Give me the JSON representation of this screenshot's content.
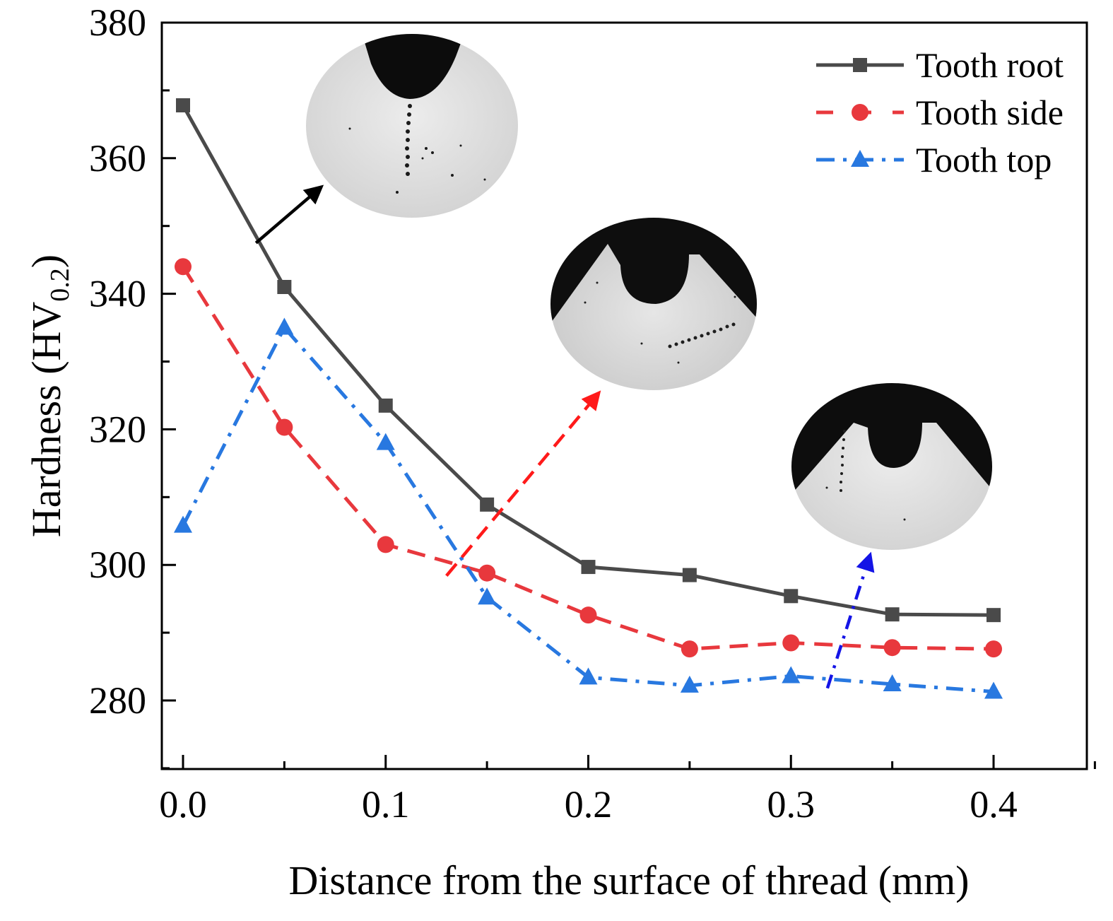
{
  "chart_data": {
    "type": "line",
    "title": "",
    "xlabel": "Distance from the surface of thread (mm)",
    "ylabel": "Hardness (HV",
    "ylabel_sub": "0.2",
    "ylabel_close": ")",
    "xlim": [
      -0.01,
      0.45
    ],
    "ylim": [
      266,
      380
    ],
    "x_ticks": [
      0.0,
      0.1,
      0.2,
      0.3,
      0.4
    ],
    "x_tick_labels": [
      "0.0",
      "0.1",
      "0.2",
      "0.3",
      "0.4"
    ],
    "y_ticks": [
      280,
      300,
      320,
      340,
      360,
      380
    ],
    "y_tick_labels": [
      "280",
      "300",
      "320",
      "340",
      "360",
      "380"
    ],
    "legend_position": "top-right",
    "x": [
      0.0,
      0.05,
      0.1,
      0.15,
      0.2,
      0.25,
      0.3,
      0.35,
      0.4
    ],
    "series": [
      {
        "name": "Tooth root",
        "color": "#4a4a4a",
        "marker": "square",
        "dash": "solid",
        "values": [
          367.8,
          341.0,
          323.5,
          308.9,
          299.7,
          298.5,
          295.4,
          292.7,
          292.6
        ]
      },
      {
        "name": "Tooth side",
        "color": "#e8383d",
        "marker": "circle",
        "dash": "dashed",
        "values": [
          344.0,
          320.3,
          303.0,
          298.8,
          292.6,
          287.6,
          288.5,
          287.8,
          287.6
        ]
      },
      {
        "name": "Tooth top",
        "color": "#2878e0",
        "marker": "triangle",
        "dash": "dashdot",
        "values": [
          305.8,
          335.0,
          318.0,
          295.2,
          283.4,
          282.2,
          283.6,
          282.4,
          281.3
        ]
      }
    ],
    "annotations": [
      {
        "kind": "arrow",
        "color": "#000000",
        "from": [
          0.036,
          347.5
        ],
        "to": [
          0.068,
          355.7
        ],
        "dash": "solid"
      },
      {
        "kind": "arrow",
        "color": "#ff1a1a",
        "from": [
          0.13,
          298.4
        ],
        "to": [
          0.205,
          325.3
        ],
        "dash": "dashed"
      },
      {
        "kind": "arrow",
        "color": "#1414e6",
        "from": [
          0.318,
          281.8
        ],
        "to": [
          0.339,
          301.4
        ],
        "dash": "dashdot"
      }
    ]
  }
}
